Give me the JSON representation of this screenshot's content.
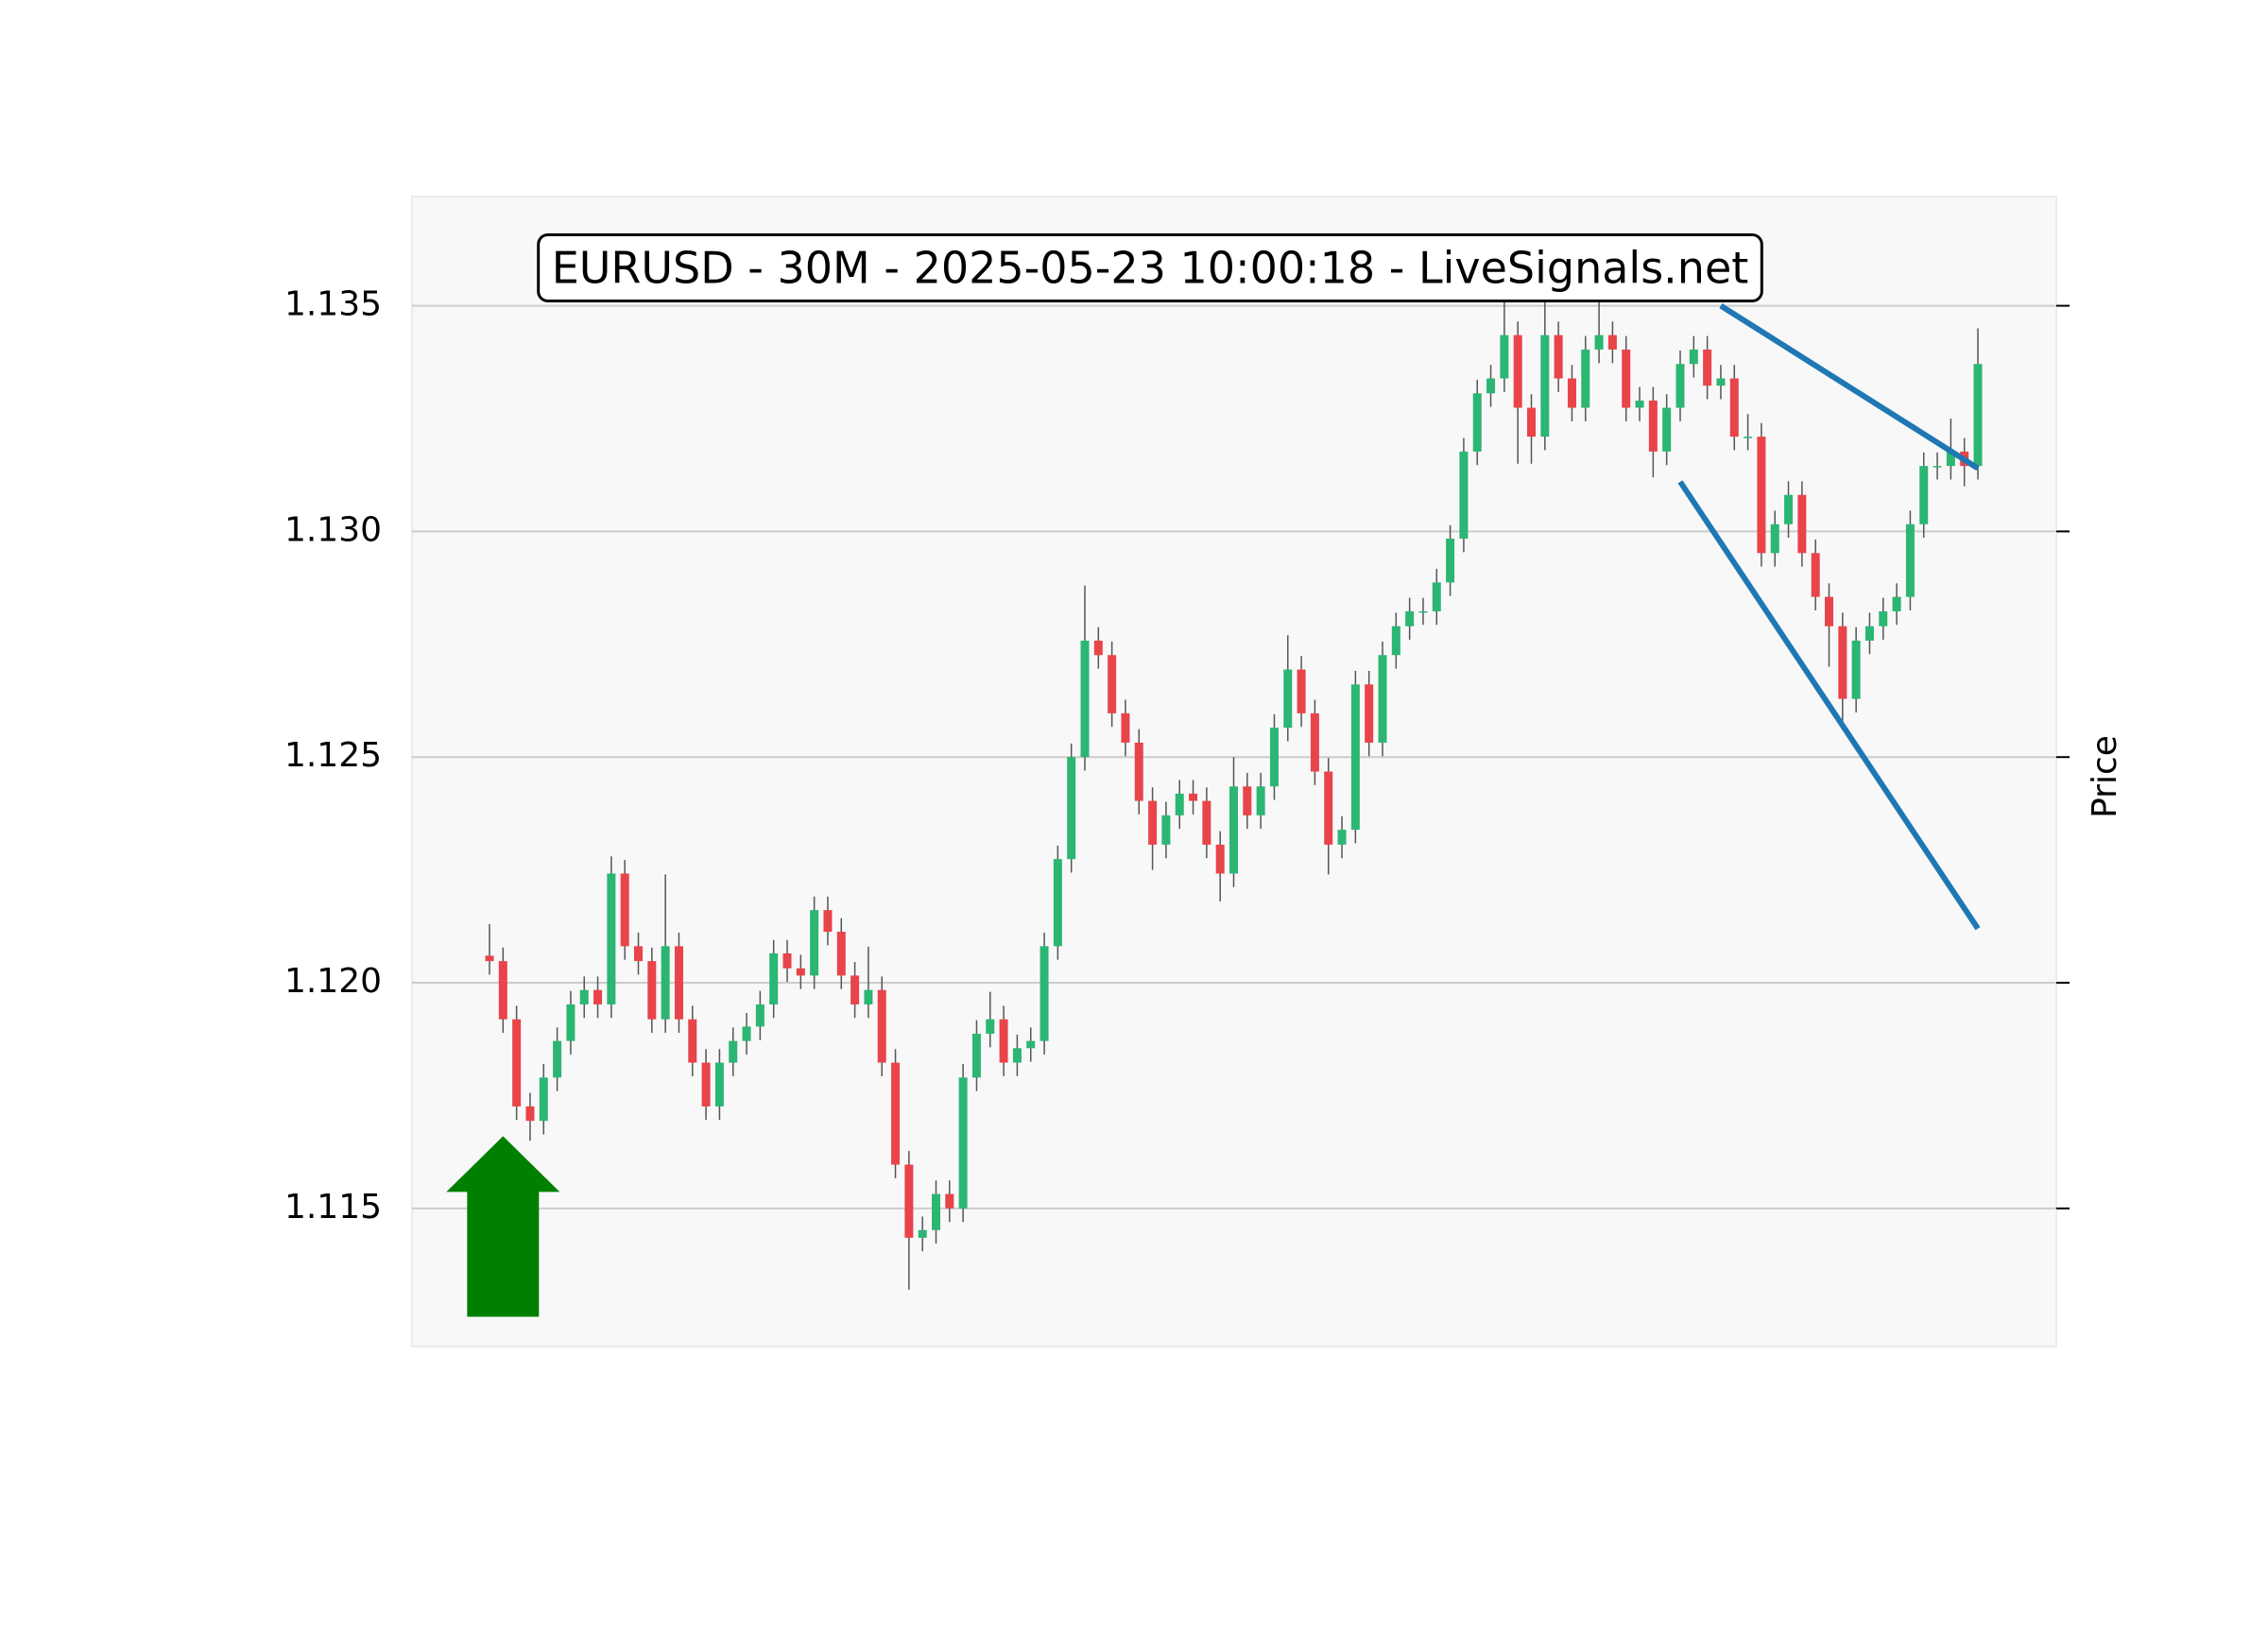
{
  "chart_data": {
    "type": "candlestick",
    "title": "EURUSD - 30M - 2025-05-23 10:00:18 - LiveSignals.net",
    "ylabel": "Price",
    "ylim": [
      1.11194,
      1.13742
    ],
    "yticks": [
      1.115,
      {
        "value": 1.12,
        "label": "1.120"
      },
      1.125,
      {
        "value": 1.13,
        "label": "1.130"
      },
      1.135
    ],
    "grid": true,
    "up_color": "#2bb673",
    "down_color": "#e8444a",
    "wick_color": "#555555",
    "open": [
      1.1206,
      1.12048,
      1.11919,
      1.11726,
      1.11694,
      1.1179,
      1.11871,
      1.11952,
      1.11984,
      1.11952,
      1.12242,
      1.12081,
      1.12048,
      1.11919,
      1.12081,
      1.11919,
      1.11823,
      1.11726,
      1.11823,
      1.11871,
      1.11903,
      1.11952,
      1.12065,
      1.12032,
      1.12016,
      1.12161,
      1.12113,
      1.12016,
      1.11952,
      1.11984,
      1.11823,
      1.11597,
      1.11435,
      1.11452,
      1.11532,
      1.115,
      1.1179,
      1.11887,
      1.11919,
      1.11823,
      1.11855,
      1.11871,
      1.12081,
      1.12274,
      1.125,
      1.12758,
      1.12726,
      1.12597,
      1.12532,
      1.12403,
      1.12306,
      1.12371,
      1.12419,
      1.12403,
      1.12306,
      1.12242,
      1.12435,
      1.12371,
      1.12435,
      1.12565,
      1.12694,
      1.12597,
      1.12468,
      1.12306,
      1.12339,
      1.12661,
      1.12532,
      1.12726,
      1.1279,
      1.12823,
      1.12823,
      1.12887,
      1.12984,
      1.13177,
      1.13306,
      1.13339,
      1.13435,
      1.13274,
      1.1321,
      1.13435,
      1.13339,
      1.13274,
      1.13403,
      1.13435,
      1.13403,
      1.13274,
      1.1329,
      1.13177,
      1.13274,
      1.13371,
      1.13403,
      1.13323,
      1.13339,
      1.1321,
      1.1321,
      1.12952,
      1.13016,
      1.13081,
      1.12952,
      1.12855,
      1.1279,
      1.12629,
      1.12758,
      1.1279,
      1.12823,
      1.12855,
      1.13016,
      1.13145,
      1.13145,
      1.13177,
      1.13145
    ],
    "high": [
      1.1213,
      1.12078,
      1.11949,
      1.11756,
      1.1182,
      1.11901,
      1.11982,
      1.12014,
      1.12014,
      1.1228,
      1.12272,
      1.12111,
      1.12078,
      1.1224,
      1.12111,
      1.11949,
      1.11853,
      1.11853,
      1.11901,
      1.11933,
      1.11982,
      1.12095,
      1.12095,
      1.12062,
      1.12191,
      1.12191,
      1.12143,
      1.12046,
      1.1208,
      1.12014,
      1.11853,
      1.11627,
      1.11482,
      1.11562,
      1.11562,
      1.1182,
      1.11917,
      1.1198,
      1.11949,
      1.11885,
      1.11901,
      1.12111,
      1.12304,
      1.1253,
      1.1288,
      1.12788,
      1.12756,
      1.12627,
      1.12562,
      1.12433,
      1.12401,
      1.12449,
      1.12449,
      1.12433,
      1.12336,
      1.125,
      1.12465,
      1.12465,
      1.12595,
      1.1277,
      1.12724,
      1.12627,
      1.12498,
      1.12369,
      1.12691,
      1.12691,
      1.12756,
      1.1282,
      1.12853,
      1.12853,
      1.12917,
      1.13014,
      1.13207,
      1.13336,
      1.13369,
      1.1352,
      1.13465,
      1.13304,
      1.1352,
      1.13465,
      1.13369,
      1.13433,
      1.1352,
      1.13465,
      1.13433,
      1.1332,
      1.1332,
      1.13304,
      1.13401,
      1.13433,
      1.13433,
      1.13369,
      1.13369,
      1.1326,
      1.1324,
      1.13046,
      1.13111,
      1.13111,
      1.12982,
      1.12885,
      1.1282,
      1.12788,
      1.1282,
      1.12853,
      1.12885,
      1.13046,
      1.13175,
      1.13175,
      1.1325,
      1.13207,
      1.1345
    ],
    "low": [
      1.12018,
      1.11889,
      1.11696,
      1.1165,
      1.11664,
      1.1176,
      1.11841,
      1.11922,
      1.11922,
      1.11922,
      1.12051,
      1.12018,
      1.11889,
      1.11889,
      1.11889,
      1.11793,
      1.11696,
      1.11696,
      1.11793,
      1.11841,
      1.11873,
      1.11922,
      1.12002,
      1.11986,
      1.11986,
      1.12083,
      1.11986,
      1.11922,
      1.11922,
      1.11793,
      1.11567,
      1.1132,
      1.11405,
      1.11422,
      1.1147,
      1.1147,
      1.1176,
      1.11857,
      1.11793,
      1.11793,
      1.11825,
      1.11841,
      1.12051,
      1.12244,
      1.1247,
      1.12696,
      1.12567,
      1.12502,
      1.12373,
      1.1225,
      1.12276,
      1.12341,
      1.12373,
      1.12276,
      1.1218,
      1.12212,
      1.12341,
      1.12341,
      1.12405,
      1.12535,
      1.12567,
      1.12438,
      1.1224,
      1.12276,
      1.12309,
      1.12502,
      1.12502,
      1.12696,
      1.1276,
      1.12793,
      1.12793,
      1.12857,
      1.12954,
      1.13147,
      1.13276,
      1.13309,
      1.1315,
      1.1315,
      1.1318,
      1.13309,
      1.13244,
      1.13244,
      1.13373,
      1.13373,
      1.13244,
      1.13244,
      1.1312,
      1.13147,
      1.13244,
      1.13341,
      1.13293,
      1.13293,
      1.1318,
      1.1318,
      1.12922,
      1.12922,
      1.12986,
      1.12922,
      1.12825,
      1.127,
      1.1258,
      1.12599,
      1.12728,
      1.1276,
      1.12793,
      1.12825,
      1.12986,
      1.13115,
      1.13115,
      1.131,
      1.13115
    ],
    "close": [
      1.12048,
      1.11919,
      1.11726,
      1.11694,
      1.1179,
      1.11871,
      1.11952,
      1.11984,
      1.11952,
      1.12242,
      1.12081,
      1.12048,
      1.11919,
      1.12081,
      1.11919,
      1.11823,
      1.11726,
      1.11823,
      1.11871,
      1.11903,
      1.11952,
      1.12065,
      1.12032,
      1.12016,
      1.12161,
      1.12113,
      1.12016,
      1.11952,
      1.11984,
      1.11823,
      1.11597,
      1.11435,
      1.11452,
      1.11532,
      1.115,
      1.1179,
      1.11887,
      1.11919,
      1.11823,
      1.11855,
      1.11871,
      1.12081,
      1.12274,
      1.125,
      1.12758,
      1.12726,
      1.12597,
      1.12532,
      1.12403,
      1.12306,
      1.12371,
      1.12419,
      1.12403,
      1.12306,
      1.12242,
      1.12435,
      1.12371,
      1.12435,
      1.12565,
      1.12694,
      1.12597,
      1.12468,
      1.12306,
      1.12339,
      1.12661,
      1.12532,
      1.12726,
      1.1279,
      1.12823,
      1.12823,
      1.12887,
      1.12984,
      1.13177,
      1.13306,
      1.13339,
      1.13435,
      1.13274,
      1.1321,
      1.13435,
      1.13339,
      1.13274,
      1.13403,
      1.13435,
      1.13403,
      1.13274,
      1.1329,
      1.13177,
      1.13274,
      1.13371,
      1.13403,
      1.13323,
      1.13339,
      1.1321,
      1.1321,
      1.12952,
      1.13016,
      1.13081,
      1.12952,
      1.12855,
      1.1279,
      1.12629,
      1.12758,
      1.1279,
      1.12823,
      1.12855,
      1.13016,
      1.13145,
      1.13145,
      1.13177,
      1.13145,
      1.13371
    ],
    "trendlines": [
      {
        "x": [
          91,
          110
        ],
        "y": [
          1.135,
          1.1314
        ],
        "color": "#1f77b4"
      },
      {
        "x": [
          88,
          110
        ],
        "y": [
          1.1311,
          1.1212
        ],
        "color": "#1f77b4"
      }
    ],
    "arrow": {
      "x": 1,
      "y": [
        1.1166,
        1.1126
      ],
      "color": "#008000"
    }
  }
}
